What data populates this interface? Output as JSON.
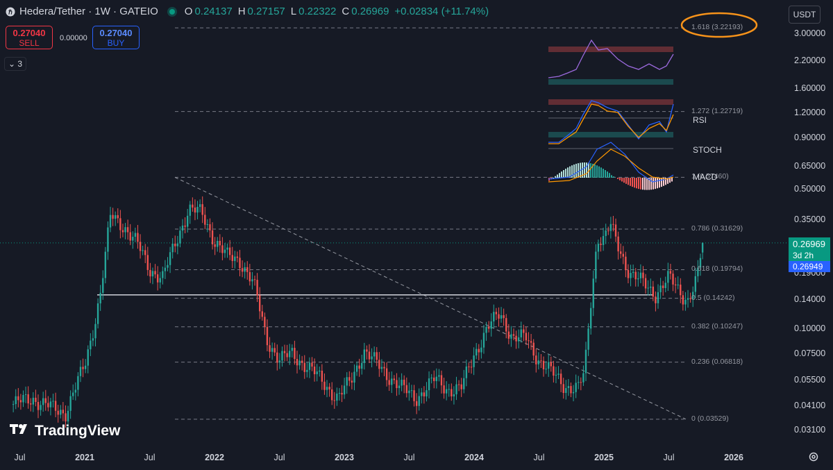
{
  "header": {
    "symbol": "Hedera/Tether · 1W · GATEIO",
    "open_label": "O",
    "open": "0.24137",
    "high_label": "H",
    "high": "0.27157",
    "low_label": "L",
    "low": "0.22322",
    "close_label": "C",
    "close": "0.26969",
    "change": "+0.02834 (+11.74%)"
  },
  "trade": {
    "sell_price": "0.27040",
    "sell_label": "SELL",
    "spread": "0.00000",
    "buy_price": "0.27040",
    "buy_label": "BUY"
  },
  "collapse_count": "3",
  "currency": "USDT",
  "price_label": {
    "price": "0.26969",
    "countdown": "3d 2h",
    "prev": "0.26949"
  },
  "brand": "TradingView",
  "colors": {
    "up": "#26a69a",
    "down": "#ef5350",
    "background": "#161a25",
    "highlight": "#f7931a"
  },
  "chart_data": {
    "type": "candlestick",
    "scale": "log",
    "y_axis_ticks": [
      "3.00000",
      "2.20000",
      "1.60000",
      "1.20000",
      "0.90000",
      "0.65000",
      "0.50000",
      "0.35000",
      "0.19000",
      "0.14000",
      "0.10000",
      "0.07500",
      "0.05500",
      "0.04100",
      "0.03100"
    ],
    "x_axis_ticks": [
      {
        "label": "Jul",
        "bold": false
      },
      {
        "label": "2021",
        "bold": true
      },
      {
        "label": "Jul",
        "bold": false
      },
      {
        "label": "2022",
        "bold": true
      },
      {
        "label": "Jul",
        "bold": false
      },
      {
        "label": "2023",
        "bold": true
      },
      {
        "label": "Jul",
        "bold": false
      },
      {
        "label": "2024",
        "bold": true
      },
      {
        "label": "Jul",
        "bold": false
      },
      {
        "label": "2025",
        "bold": true
      },
      {
        "label": "Jul",
        "bold": false
      },
      {
        "label": "2026",
        "bold": true
      }
    ],
    "fib_levels": [
      {
        "ratio": "1.618",
        "label": "1.618 (3.22193)",
        "value": 3.22193
      },
      {
        "ratio": "1.272",
        "label": "1.272 (1.22719)",
        "value": 1.22719
      },
      {
        "ratio": "1",
        "label": "1 (0.57460)",
        "value": 0.5746
      },
      {
        "ratio": "0.786",
        "label": "0.786 (0.31629)",
        "value": 0.31629
      },
      {
        "ratio": "0.618",
        "label": "0.618 (0.19794)",
        "value": 0.19794
      },
      {
        "ratio": "0.5",
        "label": "0.5 (0.14242)",
        "value": 0.14242
      },
      {
        "ratio": "0.382",
        "label": "0.382 (0.10247)",
        "value": 0.10247
      },
      {
        "ratio": "0.236",
        "label": "0.236 (0.06818)",
        "value": 0.06818
      },
      {
        "ratio": "0",
        "label": "0 (0.03529)",
        "value": 0.03529
      }
    ],
    "support_level": 0.148,
    "last_close": 0.26969,
    "price_path": [
      [
        2020.45,
        0.042
      ],
      [
        2020.6,
        0.045
      ],
      [
        2020.75,
        0.04
      ],
      [
        2020.85,
        0.038
      ],
      [
        2020.95,
        0.055
      ],
      [
        2021.0,
        0.065
      ],
      [
        2021.05,
        0.09
      ],
      [
        2021.12,
        0.15
      ],
      [
        2021.2,
        0.37
      ],
      [
        2021.3,
        0.33
      ],
      [
        2021.4,
        0.27
      ],
      [
        2021.5,
        0.2
      ],
      [
        2021.6,
        0.18
      ],
      [
        2021.7,
        0.27
      ],
      [
        2021.8,
        0.4
      ],
      [
        2021.9,
        0.38
      ],
      [
        2022.0,
        0.28
      ],
      [
        2022.1,
        0.23
      ],
      [
        2022.2,
        0.22
      ],
      [
        2022.3,
        0.17
      ],
      [
        2022.4,
        0.09
      ],
      [
        2022.5,
        0.07
      ],
      [
        2022.6,
        0.075
      ],
      [
        2022.75,
        0.062
      ],
      [
        2022.95,
        0.045
      ],
      [
        2023.05,
        0.055
      ],
      [
        2023.15,
        0.078
      ],
      [
        2023.3,
        0.062
      ],
      [
        2023.45,
        0.05
      ],
      [
        2023.55,
        0.045
      ],
      [
        2023.7,
        0.056
      ],
      [
        2023.8,
        0.05
      ],
      [
        2023.9,
        0.05
      ],
      [
        2024.0,
        0.075
      ],
      [
        2024.1,
        0.1
      ],
      [
        2024.2,
        0.12
      ],
      [
        2024.3,
        0.09
      ],
      [
        2024.4,
        0.09
      ],
      [
        2024.5,
        0.07
      ],
      [
        2024.6,
        0.06
      ],
      [
        2024.7,
        0.052
      ],
      [
        2024.8,
        0.05
      ],
      [
        2024.85,
        0.06
      ],
      [
        2024.9,
        0.14
      ],
      [
        2024.95,
        0.29
      ],
      [
        2025.0,
        0.28
      ],
      [
        2025.05,
        0.33
      ],
      [
        2025.12,
        0.25
      ],
      [
        2025.2,
        0.19
      ],
      [
        2025.3,
        0.17
      ],
      [
        2025.4,
        0.15
      ],
      [
        2025.5,
        0.18
      ],
      [
        2025.6,
        0.15
      ],
      [
        2025.65,
        0.14
      ],
      [
        2025.72,
        0.18
      ],
      [
        2025.76,
        0.26969
      ]
    ],
    "indicators": [
      "RSI",
      "STOCH",
      "MACD"
    ]
  }
}
